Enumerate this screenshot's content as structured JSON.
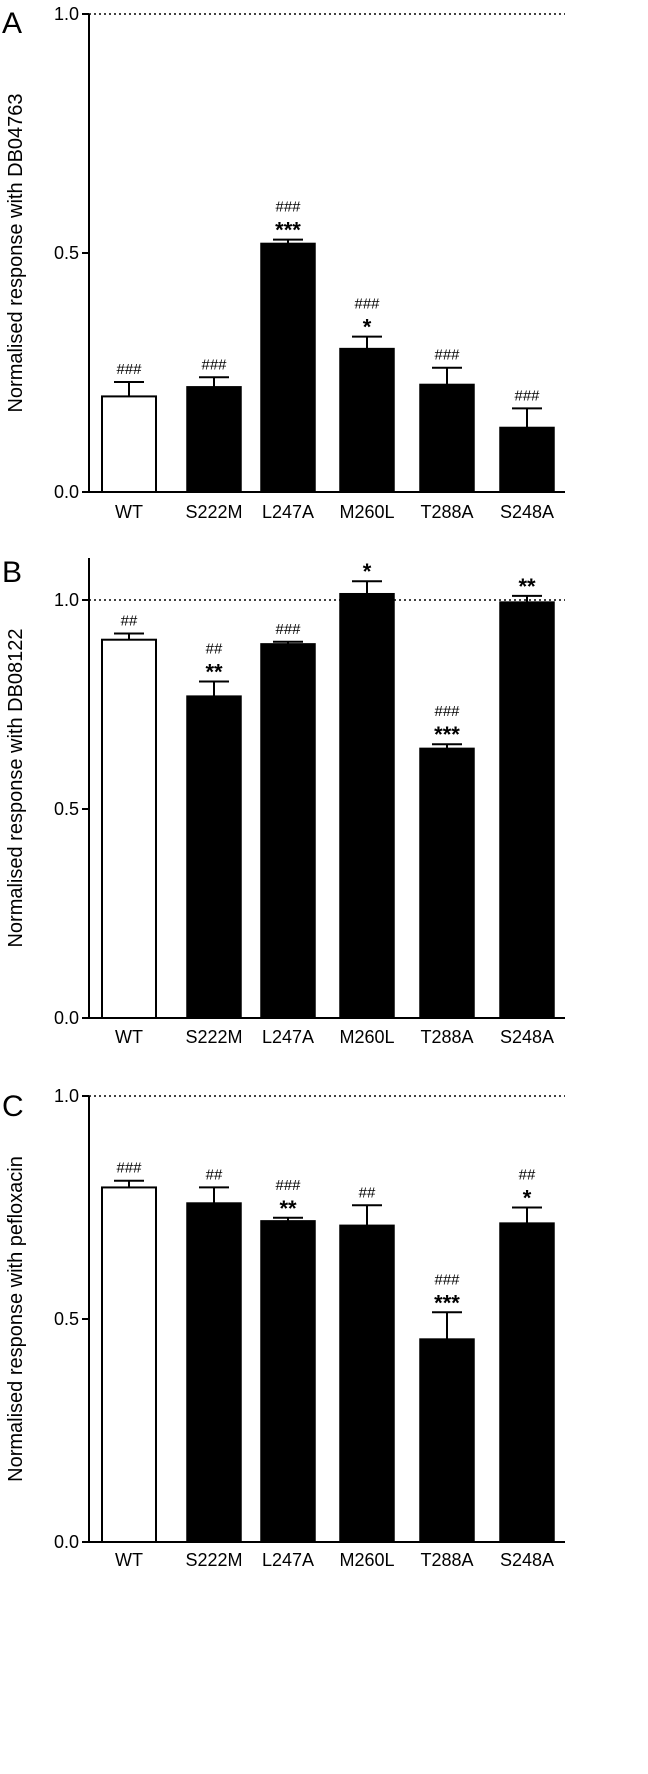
{
  "chart_data": [
    {
      "type": "bar",
      "panel_label": "A",
      "ylabel": "Normalised response with DB04763",
      "categories": [
        "WT",
        "S222M",
        "L247A",
        "M260L",
        "T288A",
        "S248A"
      ],
      "values": [
        0.2,
        0.22,
        0.52,
        0.3,
        0.225,
        0.135
      ],
      "errors": [
        0.03,
        0.02,
        0.008,
        0.025,
        0.035,
        0.04
      ],
      "annotations": [
        {
          "hash": "###",
          "stars": ""
        },
        {
          "hash": "###",
          "stars": ""
        },
        {
          "hash": "###",
          "stars": "***"
        },
        {
          "hash": "###",
          "stars": "*"
        },
        {
          "hash": "###",
          "stars": ""
        },
        {
          "hash": "###",
          "stars": ""
        }
      ],
      "bar_fills": [
        "#ffffff",
        "#000000",
        "#000000",
        "#000000",
        "#000000",
        "#000000"
      ],
      "ylim": [
        0,
        1.0
      ],
      "yticks": [
        "0.0",
        "0.5",
        "1.0"
      ],
      "reference_line": 1.0
    },
    {
      "type": "bar",
      "panel_label": "B",
      "ylabel": "Normalised response with DB08122",
      "categories": [
        "WT",
        "S222M",
        "L247A",
        "M260L",
        "T288A",
        "S248A"
      ],
      "values": [
        0.905,
        0.77,
        0.895,
        1.015,
        0.645,
        0.995
      ],
      "errors": [
        0.015,
        0.035,
        0.005,
        0.03,
        0.01,
        0.015
      ],
      "annotations": [
        {
          "hash": "##",
          "stars": ""
        },
        {
          "hash": "##",
          "stars": "**"
        },
        {
          "hash": "###",
          "stars": ""
        },
        {
          "hash": "",
          "stars": "*"
        },
        {
          "hash": "###",
          "stars": "***"
        },
        {
          "hash": "",
          "stars": "**"
        }
      ],
      "bar_fills": [
        "#ffffff",
        "#000000",
        "#000000",
        "#000000",
        "#000000",
        "#000000"
      ],
      "ylim": [
        0,
        1.1
      ],
      "yticks": [
        "0.0",
        "0.5",
        "1.0"
      ],
      "reference_line": 1.0
    },
    {
      "type": "bar",
      "panel_label": "C",
      "ylabel": "Normalised response with pefloxacin",
      "categories": [
        "WT",
        "S222M",
        "L247A",
        "M260L",
        "T288A",
        "S248A"
      ],
      "values": [
        0.795,
        0.76,
        0.72,
        0.71,
        0.455,
        0.715
      ],
      "errors": [
        0.015,
        0.035,
        0.007,
        0.045,
        0.06,
        0.035
      ],
      "annotations": [
        {
          "hash": "###",
          "stars": ""
        },
        {
          "hash": "##",
          "stars": ""
        },
        {
          "hash": "###",
          "stars": "**"
        },
        {
          "hash": "##",
          "stars": ""
        },
        {
          "hash": "###",
          "stars": "***"
        },
        {
          "hash": "##",
          "stars": "*"
        }
      ],
      "bar_fills": [
        "#ffffff",
        "#000000",
        "#000000",
        "#000000",
        "#000000",
        "#000000"
      ],
      "ylim": [
        0,
        1.0
      ],
      "yticks": [
        "0.0",
        "0.5",
        "1.0"
      ],
      "reference_line": 1.0
    }
  ]
}
